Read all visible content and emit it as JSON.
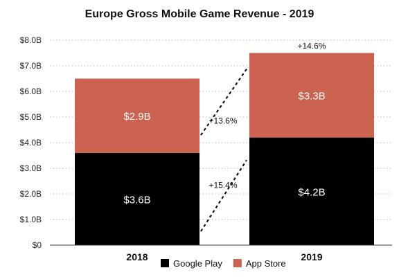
{
  "chart_data": {
    "type": "bar",
    "title": "Europe Gross Mobile Game Revenue - 2019",
    "categories": [
      "2018",
      "2019"
    ],
    "series": [
      {
        "name": "Google Play",
        "values": [
          3.6,
          4.2
        ],
        "labels": [
          "$3.6B",
          "$4.2B"
        ],
        "color": "#000000"
      },
      {
        "name": "App Store",
        "values": [
          2.9,
          3.3
        ],
        "labels": [
          "$2.9B",
          "$3.3B"
        ],
        "color": "#cc6250"
      }
    ],
    "ylim": [
      0,
      8
    ],
    "yticks": [
      0,
      1,
      2,
      3,
      4,
      5,
      6,
      7,
      8
    ],
    "ytick_labels": [
      "$0",
      "$1.0B",
      "$2.0B",
      "$3.0B",
      "$4.0B",
      "$5.0B",
      "$6.0B",
      "$7.0B",
      "$8.0B"
    ],
    "growth_annotations": {
      "google_play": "+15.4%",
      "app_store": "+13.6%",
      "total": "+14.6%"
    },
    "grid": true,
    "legend_position": "bottom",
    "stacked": true
  }
}
